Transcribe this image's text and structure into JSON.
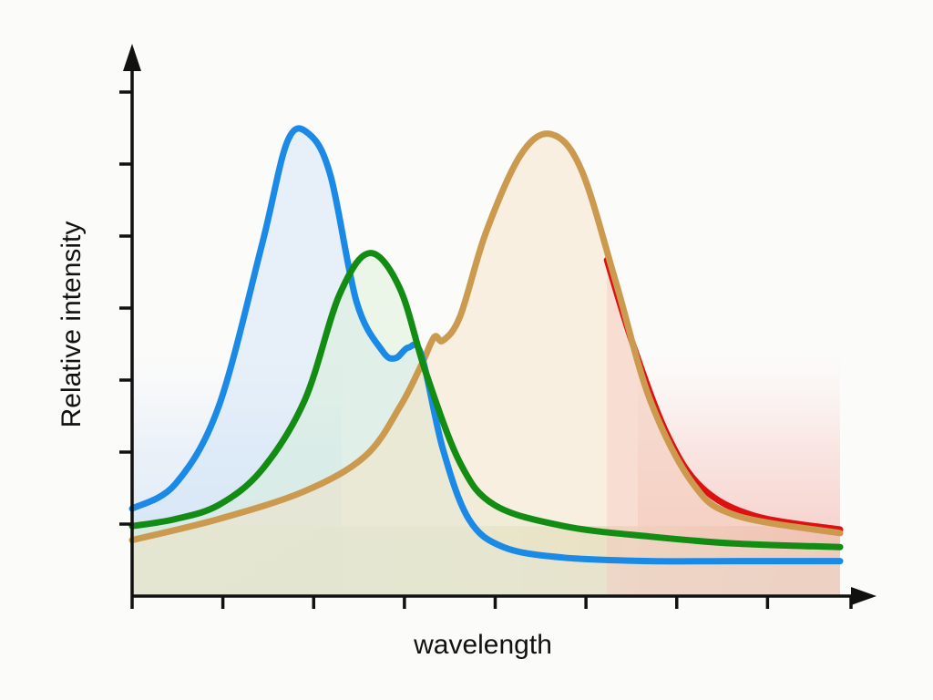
{
  "chart_data": {
    "type": "line",
    "title": "",
    "xlabel": "wavelength",
    "ylabel": "Relative intensity",
    "xlim": [
      0,
      8.2
    ],
    "ylim": [
      0,
      7.2
    ],
    "x_ticks": 9,
    "y_ticks": 8,
    "grid": false,
    "legend": "none",
    "series": [
      {
        "color": "#1a8ae6",
        "fill": "#cfe3f7",
        "points": [
          [
            0,
            1.25
          ],
          [
            0.5,
            1.6
          ],
          [
            1,
            2.7
          ],
          [
            1.5,
            5.0
          ],
          [
            1.8,
            6.5
          ],
          [
            2.05,
            6.6
          ],
          [
            2.3,
            6.0
          ],
          [
            2.6,
            4.2
          ],
          [
            2.9,
            3.5
          ],
          [
            3.05,
            3.4
          ],
          [
            3.2,
            3.55
          ],
          [
            3.35,
            3.45
          ],
          [
            3.6,
            2.1
          ],
          [
            3.9,
            1.1
          ],
          [
            4.3,
            0.7
          ],
          [
            5,
            0.55
          ],
          [
            6,
            0.5
          ],
          [
            7,
            0.5
          ],
          [
            8.2,
            0.5
          ]
        ]
      },
      {
        "color": "#128c12",
        "fill": "#d7efd5",
        "points": [
          [
            0,
            1.0
          ],
          [
            0.5,
            1.1
          ],
          [
            1,
            1.3
          ],
          [
            1.5,
            1.8
          ],
          [
            2,
            2.8
          ],
          [
            2.4,
            4.3
          ],
          [
            2.75,
            4.9
          ],
          [
            3.1,
            4.4
          ],
          [
            3.4,
            3.2
          ],
          [
            3.8,
            1.9
          ],
          [
            4.2,
            1.3
          ],
          [
            5,
            1.0
          ],
          [
            6,
            0.85
          ],
          [
            7,
            0.75
          ],
          [
            8.2,
            0.7
          ]
        ]
      },
      {
        "color": "#cc9a4e",
        "fill": "#f6e1c0",
        "points": [
          [
            0,
            0.8
          ],
          [
            1,
            1.1
          ],
          [
            2,
            1.5
          ],
          [
            2.7,
            2.0
          ],
          [
            3.1,
            2.7
          ],
          [
            3.35,
            3.3
          ],
          [
            3.5,
            3.7
          ],
          [
            3.6,
            3.65
          ],
          [
            3.8,
            4.0
          ],
          [
            4.1,
            5.2
          ],
          [
            4.5,
            6.3
          ],
          [
            4.85,
            6.6
          ],
          [
            5.2,
            6.1
          ],
          [
            5.6,
            4.5
          ],
          [
            6,
            2.8
          ],
          [
            6.5,
            1.6
          ],
          [
            7,
            1.15
          ],
          [
            8.2,
            0.9
          ]
        ]
      },
      {
        "color": "#dd1111",
        "fill": "#f3c7c2",
        "points": [
          [
            5.5,
            4.8
          ],
          [
            5.8,
            3.6
          ],
          [
            6.2,
            2.3
          ],
          [
            6.6,
            1.55
          ],
          [
            7.2,
            1.15
          ],
          [
            8.2,
            0.95
          ]
        ]
      }
    ]
  }
}
